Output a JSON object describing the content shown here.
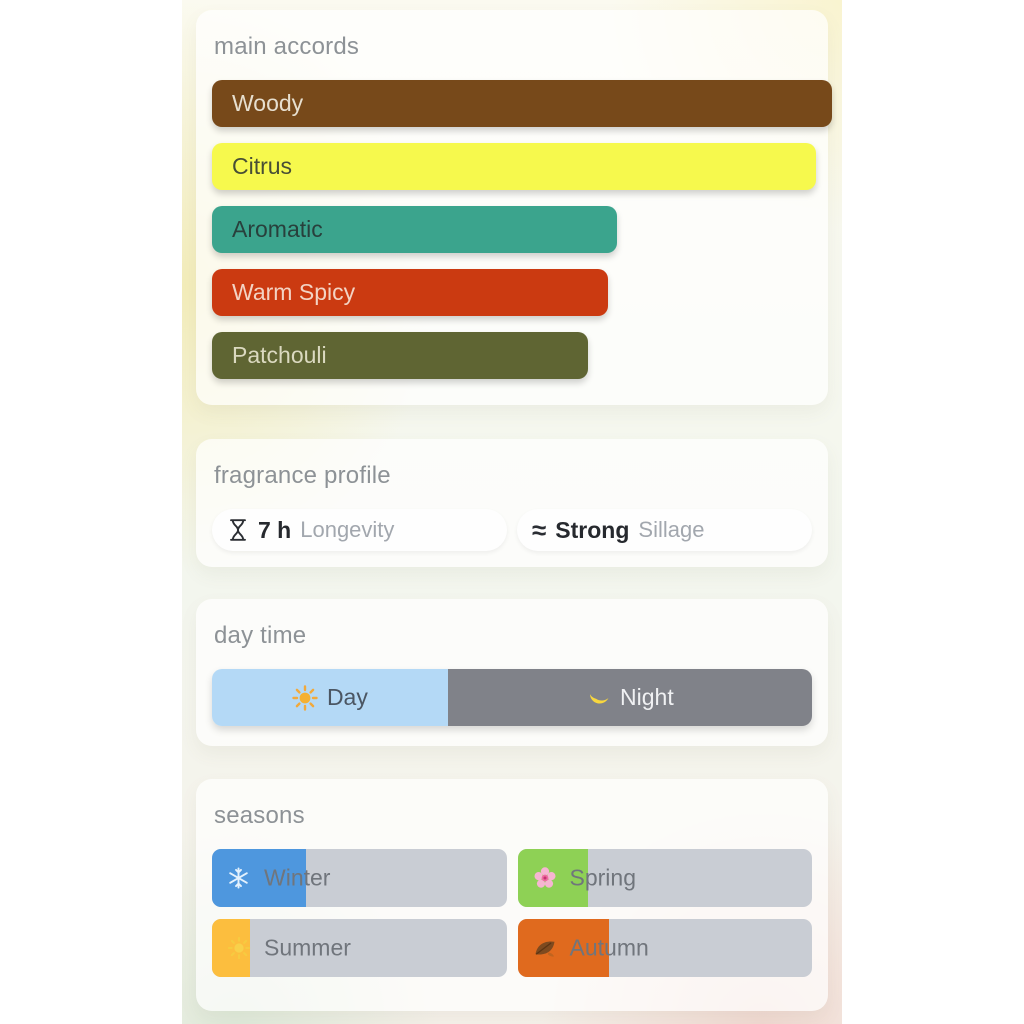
{
  "accords": {
    "title": "main accords",
    "bars": [
      {
        "label": "Woody",
        "width_pct": 100,
        "bg": "#77491a",
        "text_color": "#e7dfcf"
      },
      {
        "label": "Citrus",
        "width_pct": 97.4,
        "bg": "#f6f94d",
        "text_color": "#474e35"
      },
      {
        "label": "Aromatic",
        "width_pct": 64.1,
        "bg": "#3ba48d",
        "text_color": "#28403c"
      },
      {
        "label": "Warm Spicy",
        "width_pct": 62.7,
        "bg": "#cb3a11",
        "text_color": "#f3d3c4"
      },
      {
        "label": "Patchouli",
        "width_pct": 59.3,
        "bg": "#5f6533",
        "text_color": "#dbd9c0"
      }
    ]
  },
  "profile": {
    "title": "fragrance profile",
    "stats": [
      {
        "icon": "hourglass-icon",
        "value": "7 h",
        "label": "Longevity"
      },
      {
        "icon": "sillage-waves-icon",
        "icon_glyph": "≈",
        "value": "Strong",
        "label": "Sillage"
      }
    ]
  },
  "daytime": {
    "title": "day time",
    "segments": [
      {
        "label": "Day",
        "icon": "sun-icon",
        "width_pct": 39.3,
        "bg": "#b4d9f6",
        "text_color": "#4b5663"
      },
      {
        "label": "Night",
        "icon": "moon-icon",
        "width_pct": 60.7,
        "bg": "#808289",
        "text_color": "#f0f1f3"
      }
    ]
  },
  "seasons": {
    "title": "seasons",
    "track_color": "#c9cdd4",
    "label_color": "#70757c",
    "items": [
      {
        "label": "Winter",
        "icon": "snowflake-icon",
        "fill_pct": 32,
        "fill_color": "#4e97de"
      },
      {
        "label": "Spring",
        "icon": "blossom-icon",
        "fill_pct": 24,
        "fill_color": "#8ed155"
      },
      {
        "label": "Summer",
        "icon": "summer-sun-icon",
        "fill_pct": 13,
        "fill_color": "#fcbe3e"
      },
      {
        "label": "Autumn",
        "icon": "leaf-icon",
        "fill_pct": 31,
        "fill_color": "#e06a1e"
      }
    ]
  }
}
